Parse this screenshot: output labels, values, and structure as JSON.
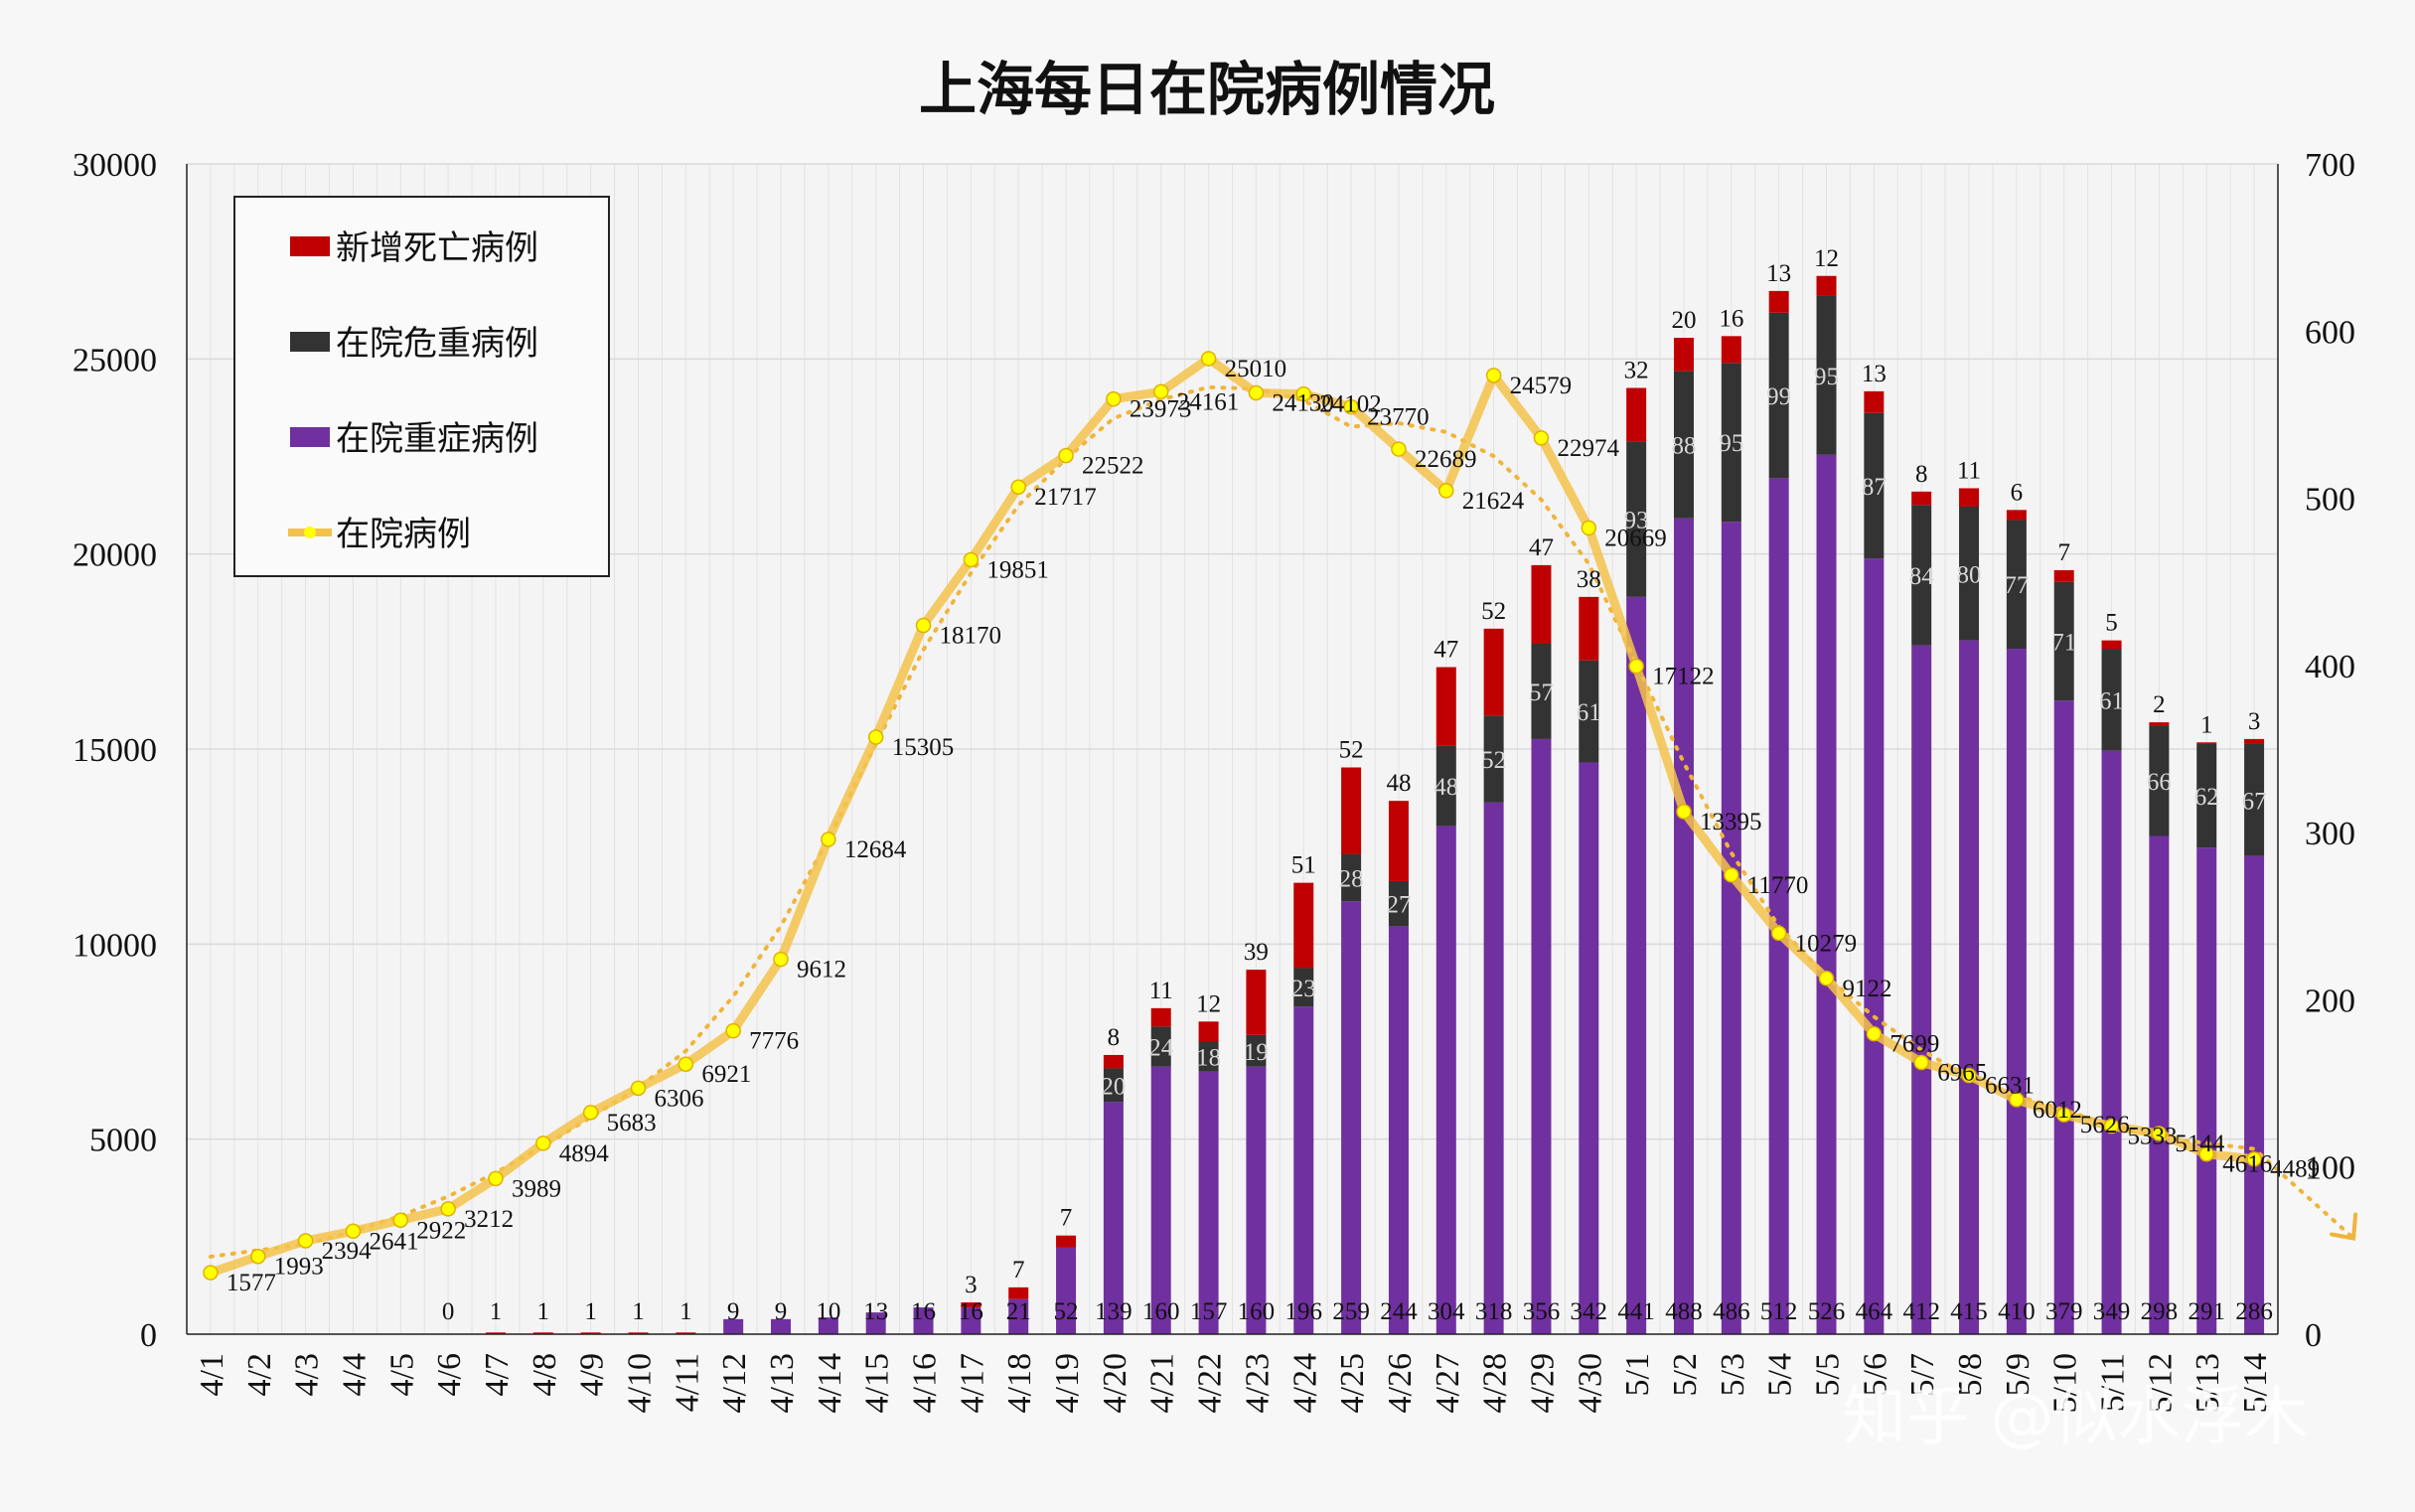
{
  "chart_data": {
    "type": "bar",
    "title": "上海每日在院病例情况",
    "categories": [
      "4/1",
      "4/2",
      "4/3",
      "4/4",
      "4/5",
      "4/6",
      "4/7",
      "4/8",
      "4/9",
      "4/10",
      "4/11",
      "4/12",
      "4/13",
      "4/14",
      "4/15",
      "4/16",
      "4/17",
      "4/18",
      "4/19",
      "4/20",
      "4/21",
      "4/22",
      "4/23",
      "4/24",
      "4/25",
      "4/26",
      "4/27",
      "4/28",
      "4/29",
      "4/30",
      "5/1",
      "5/2",
      "5/3",
      "5/4",
      "5/5",
      "5/6",
      "5/7",
      "5/8",
      "5/9",
      "5/10",
      "5/11",
      "5/12",
      "5/13",
      "5/14"
    ],
    "left_axis": {
      "ylim": [
        0,
        30000
      ],
      "ticks": [
        "0",
        "5000",
        "10000",
        "15000",
        "20000",
        "25000",
        "30000"
      ]
    },
    "right_axis": {
      "ylim": [
        0,
        700
      ],
      "ticks": [
        "0",
        "100",
        "200",
        "300",
        "400",
        "500",
        "600",
        "700"
      ]
    },
    "series": [
      {
        "name": "新增死亡病例",
        "axis": "right",
        "color": "#c00000",
        "values": [
          null,
          null,
          null,
          null,
          null,
          0,
          1,
          1,
          1,
          1,
          1,
          0,
          0,
          0,
          0,
          0,
          3,
          7,
          7,
          8,
          11,
          12,
          39,
          51,
          52,
          48,
          47,
          52,
          47,
          38,
          32,
          20,
          16,
          13,
          12,
          13,
          8,
          11,
          6,
          7,
          5,
          2,
          1,
          3
        ],
        "labels": [
          "",
          "",
          "",
          "",
          "",
          "0",
          "1",
          "1",
          "1",
          "1",
          "1",
          "",
          "",
          "",
          "",
          "",
          "3",
          "7",
          "7",
          "8",
          "11",
          "12",
          "39",
          "51",
          "52",
          "48",
          "47",
          "52",
          "47",
          "38",
          "32",
          "20",
          "16",
          "13",
          "12",
          "13",
          "8",
          "11",
          "6",
          "7",
          "5",
          "2",
          "1",
          "3"
        ]
      },
      {
        "name": "在院危重病例",
        "axis": "right",
        "color": "#333333",
        "values": [
          null,
          null,
          null,
          null,
          null,
          null,
          null,
          null,
          null,
          null,
          null,
          0,
          0,
          0,
          0,
          0,
          0,
          0,
          0,
          20,
          24,
          18,
          19,
          23,
          28,
          27,
          48,
          52,
          57,
          61,
          93,
          88,
          95,
          99,
          95,
          87,
          84,
          80,
          77,
          71,
          61,
          66,
          62,
          67
        ],
        "labels": [
          "",
          "",
          "",
          "",
          "",
          "",
          "",
          "",
          "",
          "",
          "",
          "",
          "",
          "",
          "",
          "",
          "",
          "",
          "",
          "20",
          "24",
          "18",
          "19",
          "23",
          "28",
          "27",
          "48",
          "52",
          "57",
          "61",
          "93",
          "88",
          "95",
          "99",
          "95",
          "87",
          "84",
          "80",
          "77",
          "71",
          "61",
          "66",
          "62",
          "67"
        ]
      },
      {
        "name": "在院重症病例",
        "axis": "right",
        "color": "#7030a0",
        "values": [
          null,
          null,
          null,
          null,
          null,
          null,
          null,
          null,
          null,
          null,
          null,
          9,
          9,
          10,
          13,
          16,
          16,
          21,
          52,
          139,
          160,
          157,
          160,
          196,
          259,
          244,
          304,
          318,
          356,
          342,
          441,
          488,
          486,
          512,
          526,
          464,
          412,
          415,
          410,
          379,
          349,
          298,
          291,
          286
        ],
        "labels": [
          "",
          "",
          "",
          "",
          "",
          "",
          "",
          "",
          "",
          "",
          "",
          "9",
          "9",
          "10",
          "13",
          "16",
          "16",
          "21",
          "52",
          "139",
          "160",
          "157",
          "160",
          "196",
          "259",
          "244",
          "304",
          "318",
          "356",
          "342",
          "441",
          "488",
          "486",
          "512",
          "526",
          "464",
          "412",
          "415",
          "410",
          "379",
          "349",
          "298",
          "291",
          "286"
        ]
      },
      {
        "name": "在院病例",
        "axis": "left",
        "type": "line",
        "color": "#f3c24b",
        "marker_color": "#ffff00",
        "values": [
          1577,
          1993,
          2394,
          2641,
          2922,
          3212,
          3989,
          4894,
          5683,
          6306,
          6921,
          7776,
          9612,
          12684,
          15305,
          18170,
          19851,
          21717,
          22522,
          23973,
          24161,
          25010,
          24130,
          24102,
          23770,
          22689,
          21624,
          24579,
          22974,
          20669,
          17122,
          13395,
          11770,
          10279,
          9122,
          7699,
          6965,
          6631,
          6012,
          5626,
          5333,
          5144,
          4616,
          4489
        ],
        "labels": [
          "1577",
          "1993",
          "2394",
          "2641",
          "2922",
          "3212",
          "3989",
          "4894",
          "5683",
          "6306",
          "6921",
          "7776",
          "9612",
          "12684",
          "15305",
          "18170",
          "19851",
          "21717",
          "22522",
          "23973",
          "24161",
          "25010",
          "24130",
          "24102",
          "23770",
          "22689",
          "21624",
          "24579",
          "22974",
          "20669",
          "17122",
          "13395",
          "11770",
          "10279",
          "9122",
          "7699",
          "6965",
          "6631",
          "6012",
          "5626",
          "5333",
          "5144",
          "4616",
          "4489"
        ]
      }
    ],
    "legend_position": "top-left",
    "grid": true,
    "trendline": "dotted polynomial trend of 在院病例"
  },
  "watermark": "知乎 @似水浮木"
}
